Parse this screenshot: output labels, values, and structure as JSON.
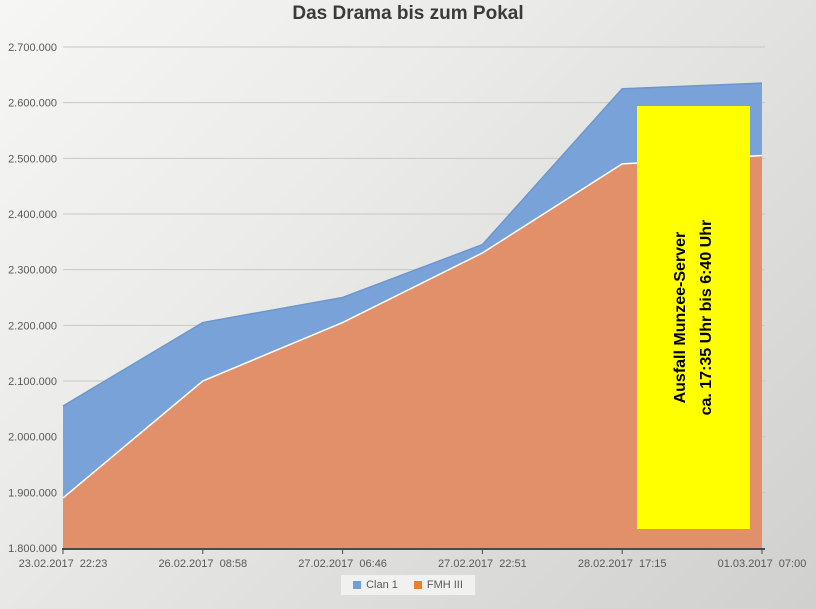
{
  "title": "Das Drama bis zum Pokal",
  "annotation": {
    "line1": "Ausfall Munzee-Server",
    "line2": "ca. 17:35 Uhr bis 6:40 Uhr",
    "bg_color": "#ffff00",
    "text_color": "#000000"
  },
  "legend": {
    "items": [
      {
        "label": "Clan 1",
        "color": "#6f9fd3"
      },
      {
        "label": "FMH III",
        "color": "#ed7d31"
      }
    ]
  },
  "colors": {
    "gridline": "#c7c7c6",
    "axis": "#4a4a4a",
    "tick_label": "#595959",
    "title": "#3b3b3b"
  },
  "chart_data": {
    "type": "area",
    "title": "Das Drama bis zum Pokal",
    "categories": [
      "23.02.2017  22:23",
      "26.02.2017  08:58",
      "27.02.2017  06:46",
      "27.02.2017  22:51",
      "28.02.2017  17:15",
      "01.03.2017  07:00"
    ],
    "series": [
      {
        "name": "Clan 1",
        "color": "#79a3d8",
        "edge_color": "#6b97ce",
        "values": [
          2055000,
          2205000,
          2250000,
          2345000,
          2625000,
          2635000
        ]
      },
      {
        "name": "FMH III",
        "color": "#e2906a",
        "edge_color": "#ffffff",
        "values": [
          1890000,
          2100000,
          2205000,
          2330000,
          2490000,
          2505000
        ]
      }
    ],
    "ylim": [
      1800000,
      2700000
    ],
    "y_tick_values": [
      1800000,
      1900000,
      2000000,
      2100000,
      2200000,
      2300000,
      2400000,
      2500000,
      2600000,
      2700000
    ],
    "y_tick_labels": [
      "1.800.000",
      "1.900.000",
      "2.000.000",
      "2.100.000",
      "2.200.000",
      "2.300.000",
      "2.400.000",
      "2.500.000",
      "2.600.000",
      "2.700.000"
    ],
    "grid": true,
    "legend_position": "bottom",
    "annotation_text": "Ausfall Munzee-Server ca. 17:35 Uhr bis 6:40 Uhr"
  }
}
